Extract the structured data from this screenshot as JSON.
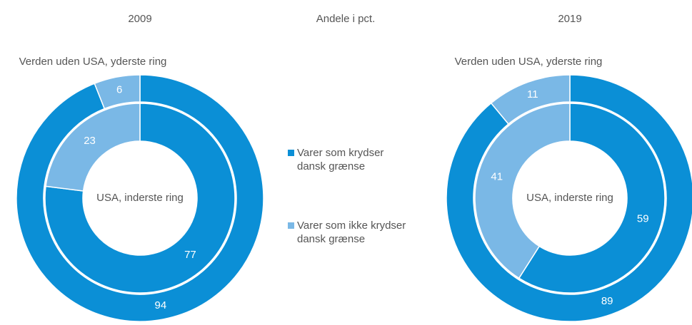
{
  "title": "Andele i pct.",
  "legend": [
    {
      "name": "Varer som krydser dansk grænse",
      "color": "#0b8fd6"
    },
    {
      "name": "Varer som ikke krydser dansk grænse",
      "color": "#7ab8e6"
    }
  ],
  "chart_data": [
    {
      "type": "donut",
      "title": "2009",
      "rings": [
        {
          "name": "Verden uden USA, yderste ring",
          "values": [
            94,
            6
          ]
        },
        {
          "name": "USA, inderste ring",
          "values": [
            77,
            23
          ]
        }
      ]
    },
    {
      "type": "donut",
      "title": "2019",
      "rings": [
        {
          "name": "Verden uden USA, yderste ring",
          "values": [
            89,
            11
          ]
        },
        {
          "name": "USA, inderste ring",
          "values": [
            59,
            41
          ]
        }
      ]
    }
  ]
}
